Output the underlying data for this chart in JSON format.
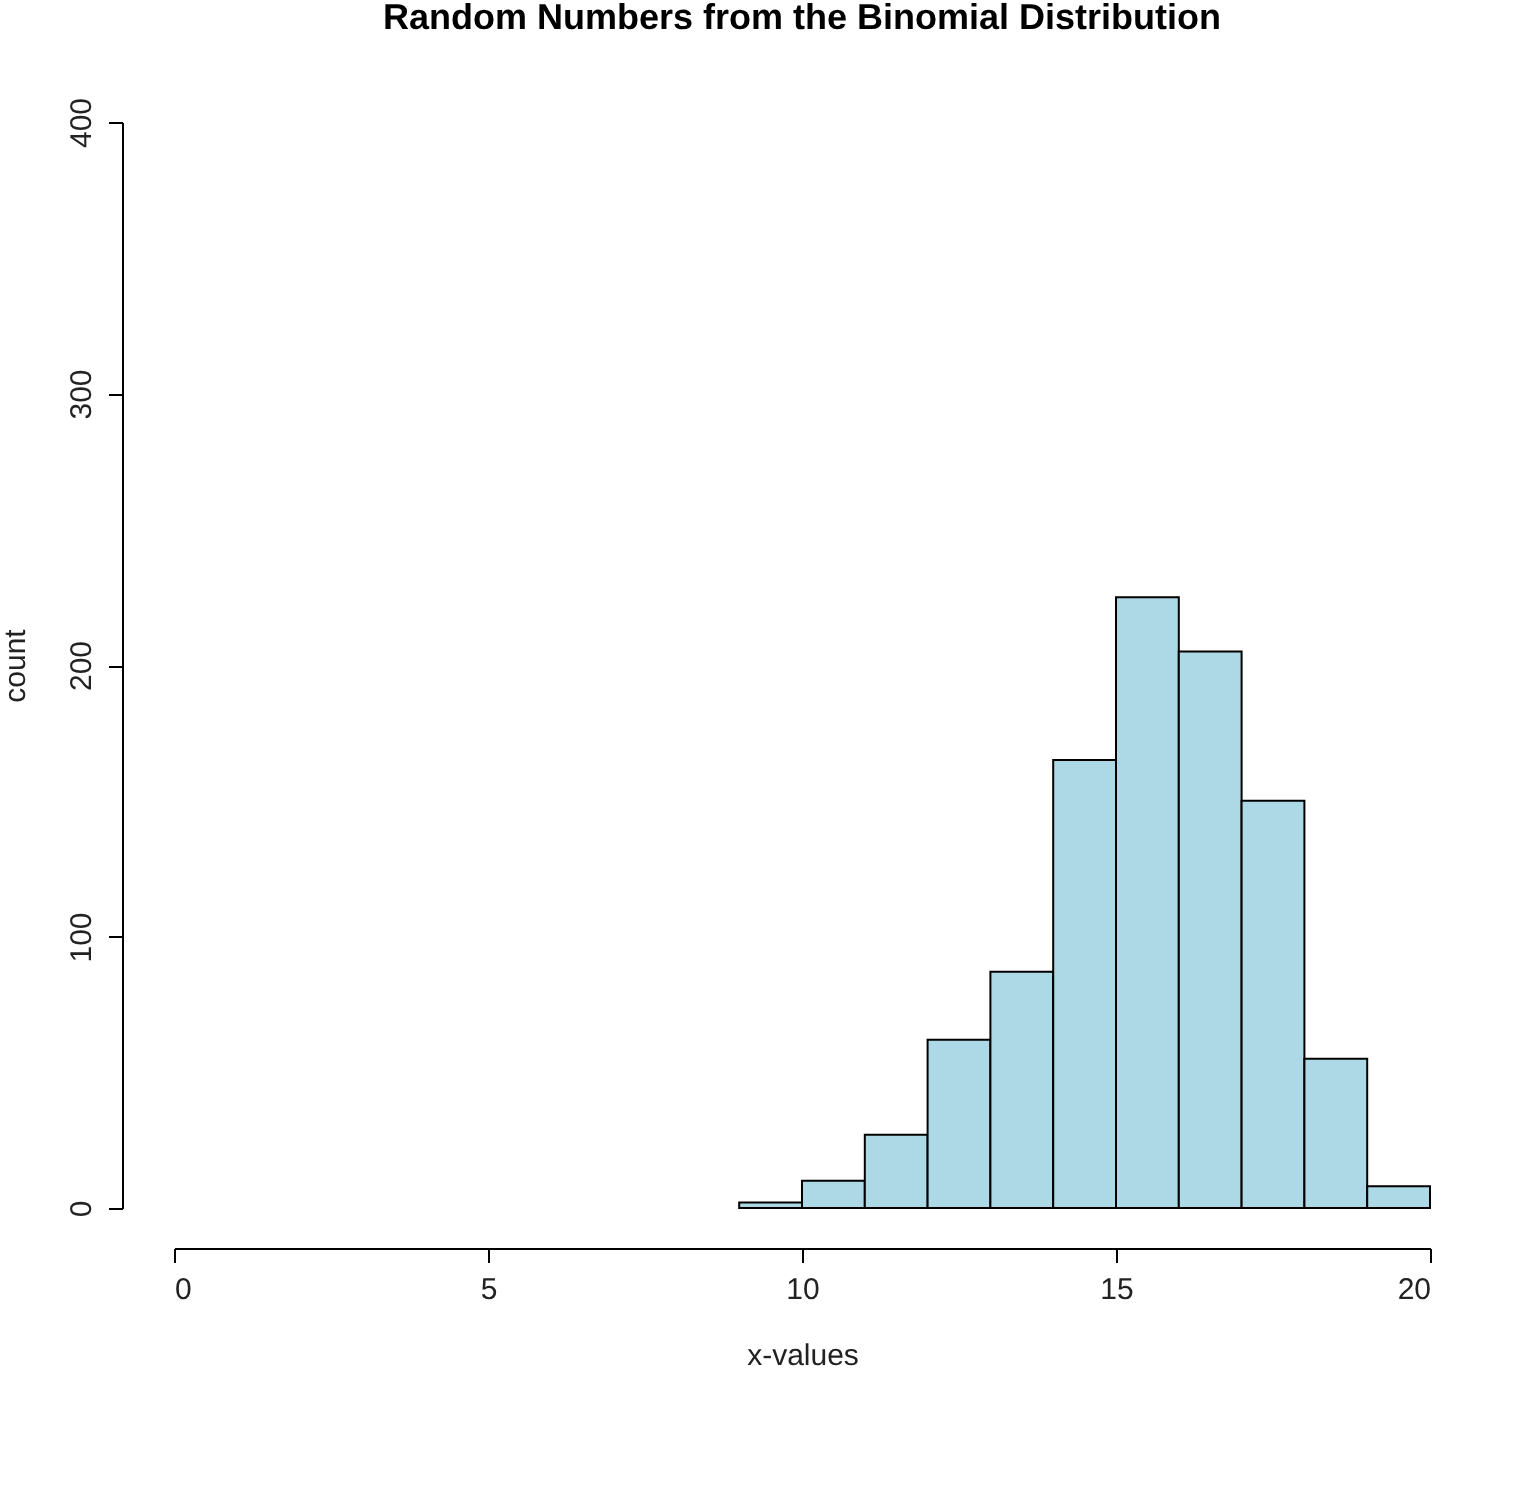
{
  "chart_data": {
    "type": "histogram",
    "title": "Random Numbers from the Binomial Distribution",
    "xlabel": "x-values",
    "ylabel": "count",
    "bins": [
      9,
      10,
      11,
      12,
      13,
      14,
      15,
      16,
      17,
      18,
      19,
      20
    ],
    "values": [
      2,
      10,
      27,
      62,
      87,
      165,
      225,
      205,
      150,
      55,
      8
    ],
    "color": "#add8e6",
    "xlim": [
      0,
      20
    ],
    "xticks": [
      0,
      5,
      10,
      15,
      20
    ],
    "ylim": [
      0,
      400
    ],
    "yticks": [
      0,
      100,
      200,
      300,
      400
    ],
    "grid": false
  }
}
